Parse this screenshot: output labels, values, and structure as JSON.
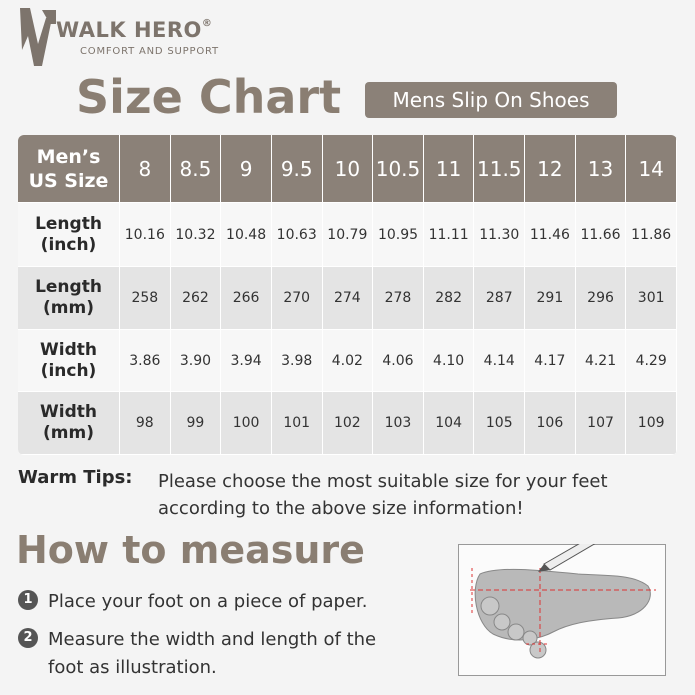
{
  "brand": {
    "name": "WALK HERO",
    "registered": "®",
    "tagline": "COMFORT AND SUPPORT"
  },
  "title": "Size Chart",
  "badge": "Mens Slip On Shoes",
  "table": {
    "corner": [
      "Men’s",
      "US Size"
    ],
    "sizes": [
      "8",
      "8.5",
      "9",
      "9.5",
      "10",
      "10.5",
      "11",
      "11.5",
      "12",
      "13",
      "14"
    ],
    "rows": [
      {
        "label": [
          "Length",
          "(inch)"
        ],
        "values": [
          "10.16",
          "10.32",
          "10.48",
          "10.63",
          "10.79",
          "10.95",
          "11.11",
          "11.30",
          "11.46",
          "11.66",
          "11.86"
        ]
      },
      {
        "label": [
          "Length",
          "(mm)"
        ],
        "values": [
          "258",
          "262",
          "266",
          "270",
          "274",
          "278",
          "282",
          "287",
          "291",
          "296",
          "301"
        ]
      },
      {
        "label": [
          "Width",
          "(inch)"
        ],
        "values": [
          "3.86",
          "3.90",
          "3.94",
          "3.98",
          "4.02",
          "4.06",
          "4.10",
          "4.14",
          "4.17",
          "4.21",
          "4.29"
        ]
      },
      {
        "label": [
          "Width",
          "(mm)"
        ],
        "values": [
          "98",
          "99",
          "100",
          "101",
          "102",
          "103",
          "104",
          "105",
          "106",
          "107",
          "109"
        ]
      }
    ]
  },
  "tips": {
    "label": "Warm Tips:",
    "lines": [
      "Please choose the most suitable size for your feet",
      "according to the above size information!"
    ]
  },
  "how_to": {
    "title": "How to measure",
    "steps": [
      {
        "number": "1",
        "lines": [
          "Place your foot on a piece of paper."
        ]
      },
      {
        "number": "2",
        "lines": [
          "Measure the width and length of the",
          "foot as illustration."
        ]
      }
    ]
  }
}
